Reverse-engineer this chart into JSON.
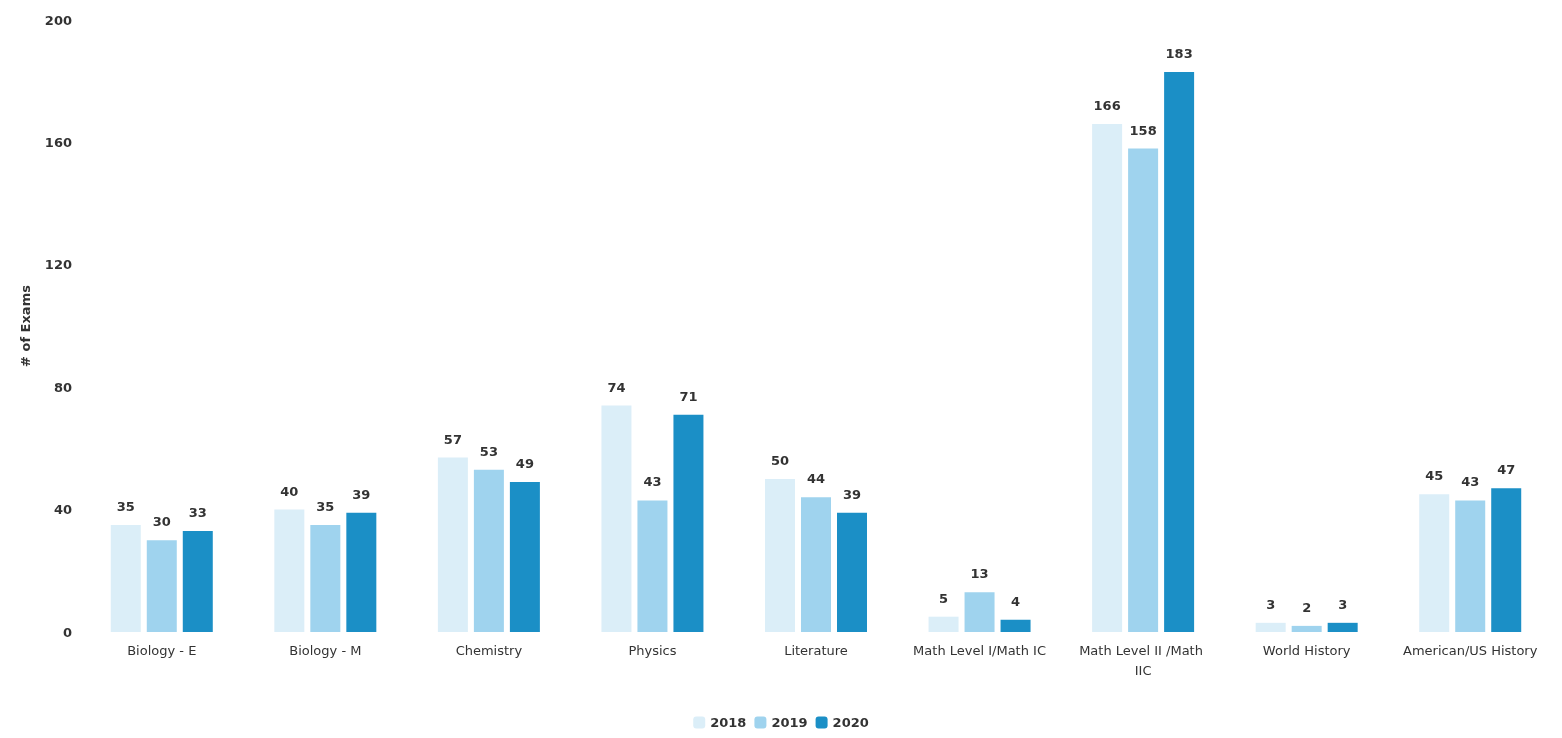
{
  "chart_data": {
    "type": "bar",
    "ylabel": "# of Exams",
    "categories": [
      "Biology - E",
      "Biology - M",
      "Chemistry",
      "Physics",
      "Literature",
      "Math Level I/Math IC",
      "Math Level II /Math IIC",
      "World History",
      "American/US History"
    ],
    "series": [
      {
        "name": "2018",
        "color": "#dbeef8",
        "values": [
          35,
          40,
          57,
          74,
          50,
          5,
          166,
          3,
          45
        ]
      },
      {
        "name": "2019",
        "color": "#9fd3ee",
        "values": [
          30,
          35,
          53,
          43,
          44,
          13,
          158,
          2,
          43
        ]
      },
      {
        "name": "2020",
        "color": "#1b8fc6",
        "values": [
          33,
          39,
          49,
          71,
          39,
          4,
          183,
          3,
          47
        ]
      }
    ],
    "ylim": [
      0,
      200
    ],
    "yticks": [
      0,
      40,
      80,
      120,
      160,
      200
    ],
    "grid": false,
    "data_labels": true,
    "legend": "bottom"
  }
}
